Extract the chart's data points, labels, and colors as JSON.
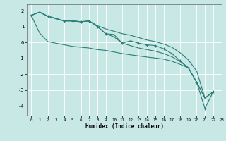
{
  "xlabel": "Humidex (Indice chaleur)",
  "background_color": "#c8e8e5",
  "grid_color": "#d8f0ed",
  "line_color": "#2d7d78",
  "xlim": [
    -0.5,
    23
  ],
  "ylim": [
    -4.6,
    2.4
  ],
  "x": [
    0,
    1,
    2,
    3,
    4,
    5,
    6,
    7,
    8,
    9,
    10,
    11,
    12,
    13,
    14,
    15,
    16,
    17,
    18,
    19,
    20,
    21,
    22
  ],
  "line_marked": [
    1.7,
    1.9,
    1.65,
    1.5,
    1.35,
    1.35,
    1.3,
    1.35,
    1.0,
    0.55,
    0.5,
    -0.05,
    0.1,
    -0.05,
    -0.15,
    -0.2,
    -0.4,
    -0.7,
    -1.15,
    -1.6,
    -2.5,
    -4.15,
    -3.1
  ],
  "line_smooth_top": [
    1.7,
    1.9,
    1.65,
    1.5,
    1.35,
    1.35,
    1.3,
    1.35,
    1.05,
    0.85,
    0.7,
    0.55,
    0.45,
    0.3,
    0.15,
    0.05,
    -0.1,
    -0.3,
    -0.65,
    -1.1,
    -1.8,
    -3.5,
    -3.1
  ],
  "line_smooth_mid": [
    1.7,
    1.9,
    1.65,
    1.5,
    1.35,
    1.35,
    1.3,
    1.35,
    1.0,
    0.55,
    0.35,
    -0.05,
    -0.2,
    -0.35,
    -0.45,
    -0.55,
    -0.7,
    -0.9,
    -1.2,
    -1.6,
    -2.5,
    -3.5,
    -3.1
  ],
  "line_lower": [
    1.7,
    0.6,
    0.05,
    -0.05,
    -0.15,
    -0.25,
    -0.3,
    -0.35,
    -0.45,
    -0.5,
    -0.6,
    -0.7,
    -0.78,
    -0.85,
    -0.92,
    -0.98,
    -1.05,
    -1.18,
    -1.38,
    -1.6,
    -2.5,
    -3.5,
    -3.1
  ],
  "yticks": [
    -4,
    -3,
    -2,
    -1,
    0,
    1,
    2
  ],
  "xticks": [
    0,
    1,
    2,
    3,
    4,
    5,
    6,
    7,
    8,
    9,
    10,
    11,
    12,
    13,
    14,
    15,
    16,
    17,
    18,
    19,
    20,
    21,
    22,
    23
  ]
}
